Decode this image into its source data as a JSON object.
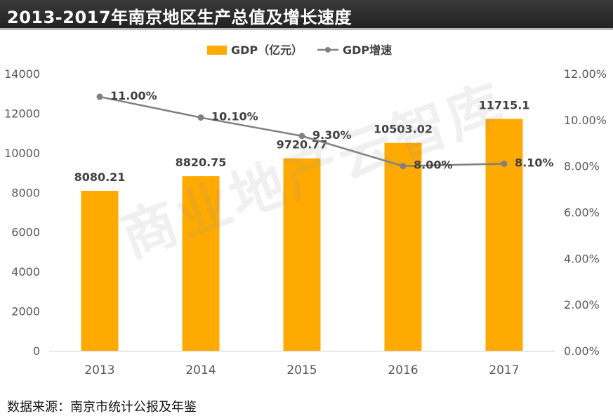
{
  "title": "2013-2017年南京地区生产总值及增长速度",
  "footer": {
    "source_label": "数据来源：南京市统计公报及年鉴"
  },
  "watermark": "商业地产云智库",
  "colors": {
    "bar": "#FFAA00",
    "line": "#808080",
    "title_bg": "#2b2b2b",
    "axis_text": "#595959",
    "label_text": "#404040"
  },
  "chart_data": {
    "type": "bar",
    "title": "2013-2017年南京地区生产总值及增长速度",
    "categories": [
      "2013",
      "2014",
      "2015",
      "2016",
      "2017"
    ],
    "series": [
      {
        "name": "GDP（亿元）",
        "type": "bar",
        "axis": "left",
        "values": [
          8080.21,
          8820.75,
          9720.77,
          10503.02,
          11715.1
        ],
        "labels": [
          "8080.21",
          "8820.75",
          "9720.77",
          "10503.02",
          "11715.1"
        ]
      },
      {
        "name": "GDP增速",
        "type": "line",
        "axis": "right",
        "values": [
          11.0,
          10.1,
          9.3,
          8.0,
          8.1
        ],
        "labels": [
          "11.00%",
          "10.10%",
          "9.30%",
          "8.00%",
          "8.10%"
        ]
      }
    ],
    "ylim_left": [
      0,
      14000
    ],
    "yticks_left": [
      "0",
      "2000",
      "4000",
      "6000",
      "8000",
      "10000",
      "12000",
      "14000"
    ],
    "ylim_right": [
      0,
      12
    ],
    "yticks_right": [
      "0.00%",
      "2.00%",
      "4.00%",
      "6.00%",
      "8.00%",
      "10.00%",
      "12.00%"
    ],
    "legend_position": "top",
    "grid": false
  }
}
